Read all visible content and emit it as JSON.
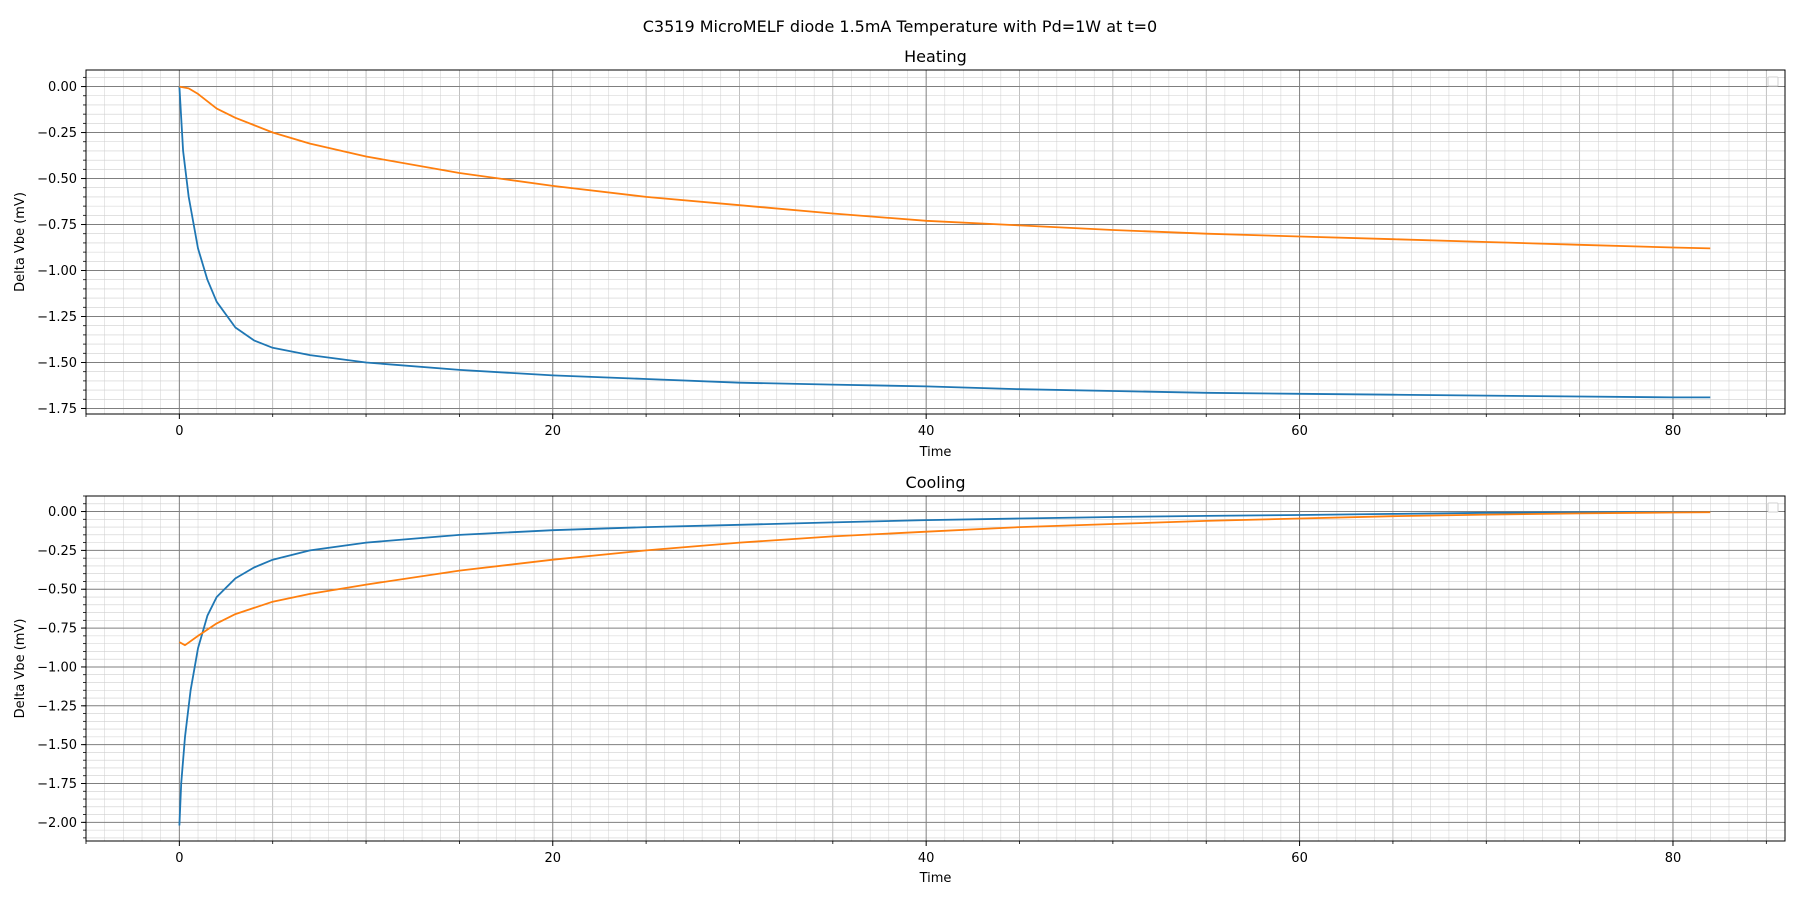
{
  "figure": {
    "suptitle": "C3519 MicroMELF diode 1.5mA Temperature with Pd=1W at t=0"
  },
  "colors": {
    "series_1": "#1f77b4",
    "series_2": "#ff7f0e",
    "major_grid": "#7f7f7f",
    "minor_grid": "#cfcfcf"
  },
  "chart_data": [
    {
      "type": "line",
      "title": "Heating",
      "xlabel": "Time",
      "ylabel": "Delta Vbe (mV)",
      "xlim": [
        -5,
        86
      ],
      "ylim": [
        -1.78,
        0.09
      ],
      "xticks": [
        0,
        20,
        40,
        60,
        80
      ],
      "yticks": [
        0.0,
        -0.25,
        -0.5,
        -0.75,
        -1.0,
        -1.25,
        -1.5,
        -1.75
      ],
      "ytick_labels": [
        "0.00",
        "−0.25",
        "−0.50",
        "−0.75",
        "−1.00",
        "−1.25",
        "−1.50",
        "−1.75"
      ],
      "grid": true,
      "legend": "top-right (empty)",
      "series": [
        {
          "color": "#1f77b4",
          "x": [
            0,
            0.2,
            0.5,
            1,
            1.5,
            2,
            3,
            4,
            5,
            7,
            10,
            15,
            20,
            25,
            30,
            35,
            40,
            45,
            50,
            55,
            60,
            65,
            70,
            75,
            80,
            82
          ],
          "y": [
            0.0,
            -0.35,
            -0.6,
            -0.88,
            -1.05,
            -1.17,
            -1.31,
            -1.38,
            -1.42,
            -1.46,
            -1.5,
            -1.54,
            -1.57,
            -1.59,
            -1.61,
            -1.62,
            -1.63,
            -1.645,
            -1.655,
            -1.665,
            -1.67,
            -1.675,
            -1.68,
            -1.685,
            -1.69,
            -1.69
          ]
        },
        {
          "color": "#ff7f0e",
          "x": [
            0,
            0.5,
            1,
            2,
            3,
            5,
            7,
            10,
            15,
            20,
            25,
            30,
            35,
            40,
            45,
            50,
            55,
            60,
            65,
            70,
            75,
            80,
            82
          ],
          "y": [
            0.0,
            -0.01,
            -0.04,
            -0.12,
            -0.17,
            -0.25,
            -0.31,
            -0.38,
            -0.47,
            -0.54,
            -0.6,
            -0.645,
            -0.69,
            -0.73,
            -0.755,
            -0.78,
            -0.8,
            -0.815,
            -0.83,
            -0.845,
            -0.86,
            -0.875,
            -0.88
          ]
        }
      ]
    },
    {
      "type": "line",
      "title": "Cooling",
      "xlabel": "Time",
      "ylabel": "Delta Vbe (mV)",
      "xlim": [
        -5,
        86
      ],
      "ylim": [
        -2.12,
        0.1
      ],
      "xticks": [
        0,
        20,
        40,
        60,
        80
      ],
      "yticks": [
        0.0,
        -0.25,
        -0.5,
        -0.75,
        -1.0,
        -1.25,
        -1.5,
        -1.75,
        -2.0
      ],
      "ytick_labels": [
        "0.00",
        "−0.25",
        "−0.50",
        "−0.75",
        "−1.00",
        "−1.25",
        "−1.50",
        "−1.75",
        "−2.00"
      ],
      "grid": true,
      "legend": "top-right (empty)",
      "series": [
        {
          "color": "#1f77b4",
          "x": [
            0,
            0.1,
            0.3,
            0.6,
            1,
            1.5,
            2,
            3,
            4,
            5,
            7,
            10,
            15,
            20,
            25,
            30,
            35,
            40,
            45,
            50,
            55,
            60,
            65,
            70,
            75,
            80,
            82
          ],
          "y": [
            -2.02,
            -1.75,
            -1.45,
            -1.15,
            -0.88,
            -0.67,
            -0.55,
            -0.43,
            -0.36,
            -0.31,
            -0.25,
            -0.2,
            -0.15,
            -0.12,
            -0.1,
            -0.085,
            -0.07,
            -0.055,
            -0.045,
            -0.035,
            -0.028,
            -0.022,
            -0.015,
            -0.008,
            -0.005,
            -0.003,
            -0.002
          ]
        },
        {
          "color": "#ff7f0e",
          "x": [
            0,
            0.3,
            1,
            2,
            3,
            4,
            5,
            7,
            10,
            15,
            20,
            25,
            30,
            35,
            40,
            45,
            50,
            55,
            60,
            65,
            70,
            75,
            80,
            82
          ],
          "y": [
            -0.84,
            -0.86,
            -0.8,
            -0.72,
            -0.66,
            -0.62,
            -0.58,
            -0.53,
            -0.47,
            -0.38,
            -0.31,
            -0.25,
            -0.2,
            -0.16,
            -0.13,
            -0.1,
            -0.08,
            -0.06,
            -0.045,
            -0.03,
            -0.02,
            -0.012,
            -0.006,
            -0.004
          ]
        }
      ]
    }
  ]
}
